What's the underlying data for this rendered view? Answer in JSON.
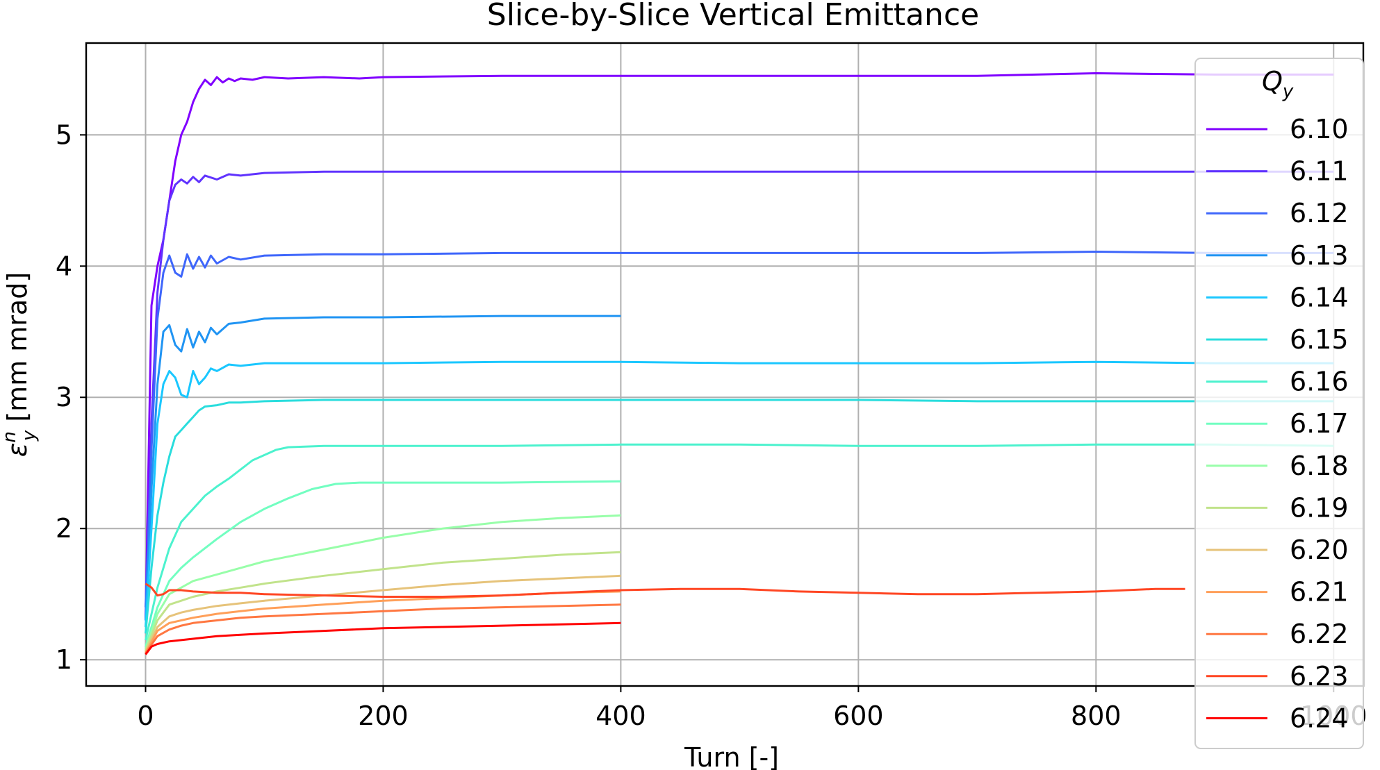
{
  "chart_data": {
    "type": "line",
    "title": "Slice-by-Slice Vertical Emittance",
    "xlabel": "Turn [-]",
    "ylabel_main": "ε",
    "ylabel_sup": "n",
    "ylabel_sub": "y",
    "ylabel_unit": "[mm mrad]",
    "xlim": [
      -50,
      1025
    ],
    "ylim": [
      0.8,
      5.7
    ],
    "xticks": [
      0,
      200,
      400,
      600,
      800,
      1000
    ],
    "xtick_labels": [
      "0",
      "200",
      "400",
      "600",
      "800",
      "1000"
    ],
    "yticks": [
      1,
      2,
      3,
      4,
      5
    ],
    "ytick_labels": [
      "1",
      "2",
      "3",
      "4",
      "5"
    ],
    "grid": true,
    "legend": {
      "placement": "right",
      "title_main": "Q",
      "title_sub": "y"
    },
    "series": [
      {
        "name": "6.10",
        "color": "#8000ff",
        "x": [
          0,
          5,
          10,
          15,
          20,
          25,
          30,
          35,
          40,
          45,
          50,
          55,
          60,
          65,
          70,
          75,
          80,
          90,
          100,
          120,
          150,
          180,
          200,
          300,
          400,
          500,
          600,
          700,
          800,
          900,
          1000
        ],
        "y": [
          1.3,
          3.7,
          4.0,
          4.2,
          4.5,
          4.8,
          5.0,
          5.1,
          5.25,
          5.35,
          5.42,
          5.38,
          5.44,
          5.4,
          5.43,
          5.41,
          5.43,
          5.42,
          5.44,
          5.43,
          5.44,
          5.43,
          5.44,
          5.45,
          5.45,
          5.45,
          5.45,
          5.45,
          5.47,
          5.46,
          5.46
        ]
      },
      {
        "name": "6.11",
        "color": "#6033fe",
        "x": [
          0,
          5,
          10,
          15,
          20,
          25,
          30,
          35,
          40,
          45,
          50,
          60,
          70,
          80,
          100,
          150,
          200,
          300,
          400,
          500,
          600,
          700,
          800,
          900,
          1000
        ],
        "y": [
          1.3,
          2.8,
          3.8,
          4.2,
          4.5,
          4.62,
          4.66,
          4.63,
          4.68,
          4.64,
          4.69,
          4.66,
          4.7,
          4.69,
          4.71,
          4.72,
          4.72,
          4.72,
          4.72,
          4.72,
          4.72,
          4.72,
          4.72,
          4.72,
          4.72
        ]
      },
      {
        "name": "6.12",
        "color": "#3e66fb",
        "x": [
          0,
          5,
          10,
          15,
          20,
          25,
          30,
          35,
          40,
          45,
          50,
          55,
          60,
          70,
          80,
          100,
          150,
          200,
          300,
          400,
          500,
          600,
          700,
          800,
          900,
          1000
        ],
        "y": [
          1.4,
          2.6,
          3.6,
          3.95,
          4.08,
          3.95,
          3.92,
          4.09,
          3.98,
          4.07,
          3.99,
          4.08,
          4.02,
          4.07,
          4.05,
          4.08,
          4.09,
          4.09,
          4.1,
          4.1,
          4.1,
          4.1,
          4.1,
          4.11,
          4.1,
          4.1
        ]
      },
      {
        "name": "6.13",
        "color": "#2094f3",
        "x": [
          0,
          5,
          10,
          15,
          20,
          25,
          30,
          35,
          40,
          45,
          50,
          55,
          60,
          70,
          80,
          100,
          150,
          200,
          300,
          400
        ],
        "y": [
          1.3,
          2.3,
          3.1,
          3.5,
          3.55,
          3.4,
          3.35,
          3.52,
          3.38,
          3.5,
          3.42,
          3.53,
          3.48,
          3.56,
          3.57,
          3.6,
          3.61,
          3.61,
          3.62,
          3.62
        ]
      },
      {
        "name": "6.14",
        "color": "#1ac7ff",
        "x": [
          0,
          5,
          10,
          15,
          20,
          25,
          30,
          35,
          40,
          45,
          50,
          55,
          60,
          70,
          80,
          100,
          150,
          200,
          300,
          400,
          500,
          600,
          700,
          800,
          900,
          1000
        ],
        "y": [
          1.25,
          2.0,
          2.8,
          3.1,
          3.2,
          3.15,
          3.02,
          3.0,
          3.2,
          3.1,
          3.15,
          3.22,
          3.2,
          3.25,
          3.24,
          3.26,
          3.26,
          3.26,
          3.27,
          3.27,
          3.26,
          3.26,
          3.26,
          3.27,
          3.26,
          3.26
        ]
      },
      {
        "name": "6.15",
        "color": "#2adddd",
        "x": [
          0,
          5,
          10,
          15,
          20,
          25,
          30,
          35,
          40,
          45,
          50,
          60,
          70,
          80,
          100,
          150,
          200,
          300,
          400,
          500,
          600,
          700,
          800,
          900,
          1000
        ],
        "y": [
          1.2,
          1.7,
          2.1,
          2.35,
          2.55,
          2.7,
          2.75,
          2.8,
          2.85,
          2.9,
          2.93,
          2.94,
          2.96,
          2.96,
          2.97,
          2.98,
          2.98,
          2.98,
          2.98,
          2.98,
          2.98,
          2.97,
          2.97,
          2.97,
          2.97
        ]
      },
      {
        "name": "6.16",
        "color": "#4cf2ce",
        "x": [
          0,
          10,
          20,
          30,
          40,
          50,
          60,
          70,
          80,
          90,
          100,
          110,
          120,
          150,
          200,
          300,
          400,
          500,
          600,
          700,
          800,
          900,
          1000
        ],
        "y": [
          1.15,
          1.55,
          1.85,
          2.05,
          2.15,
          2.25,
          2.32,
          2.38,
          2.45,
          2.52,
          2.56,
          2.6,
          2.62,
          2.63,
          2.63,
          2.63,
          2.64,
          2.64,
          2.63,
          2.63,
          2.64,
          2.64,
          2.63
        ]
      },
      {
        "name": "6.17",
        "color": "#72fec1",
        "x": [
          0,
          10,
          20,
          30,
          40,
          60,
          80,
          100,
          120,
          140,
          160,
          180,
          200,
          300,
          400
        ],
        "y": [
          1.1,
          1.4,
          1.6,
          1.7,
          1.78,
          1.92,
          2.05,
          2.15,
          2.23,
          2.3,
          2.34,
          2.35,
          2.35,
          2.35,
          2.36
        ]
      },
      {
        "name": "6.18",
        "color": "#98fea9",
        "x": [
          0,
          10,
          20,
          30,
          40,
          60,
          80,
          100,
          150,
          200,
          250,
          300,
          350,
          400
        ],
        "y": [
          1.08,
          1.35,
          1.5,
          1.55,
          1.6,
          1.65,
          1.7,
          1.75,
          1.84,
          1.93,
          2.0,
          2.05,
          2.08,
          2.1
        ]
      },
      {
        "name": "6.19",
        "color": "#c1e38b",
        "x": [
          0,
          10,
          20,
          30,
          40,
          60,
          80,
          100,
          150,
          200,
          250,
          300,
          350,
          400
        ],
        "y": [
          1.07,
          1.3,
          1.42,
          1.45,
          1.48,
          1.52,
          1.55,
          1.58,
          1.64,
          1.69,
          1.74,
          1.77,
          1.8,
          1.82
        ]
      },
      {
        "name": "6.20",
        "color": "#e6c37a",
        "x": [
          0,
          10,
          20,
          30,
          40,
          60,
          80,
          100,
          150,
          200,
          250,
          300,
          350,
          400
        ],
        "y": [
          1.06,
          1.25,
          1.33,
          1.36,
          1.38,
          1.41,
          1.43,
          1.45,
          1.49,
          1.53,
          1.57,
          1.6,
          1.62,
          1.64
        ]
      },
      {
        "name": "6.21",
        "color": "#ff9f59",
        "x": [
          0,
          10,
          20,
          30,
          40,
          60,
          80,
          100,
          150,
          200,
          250,
          300,
          350,
          400
        ],
        "y": [
          1.05,
          1.22,
          1.28,
          1.3,
          1.32,
          1.35,
          1.37,
          1.39,
          1.42,
          1.45,
          1.47,
          1.49,
          1.51,
          1.52
        ]
      },
      {
        "name": "6.22",
        "color": "#ff7741",
        "x": [
          0,
          10,
          20,
          30,
          40,
          60,
          80,
          100,
          150,
          200,
          250,
          300,
          350,
          400
        ],
        "y": [
          1.05,
          1.18,
          1.23,
          1.26,
          1.28,
          1.3,
          1.32,
          1.33,
          1.35,
          1.37,
          1.39,
          1.4,
          1.41,
          1.42
        ]
      },
      {
        "name": "6.23",
        "color": "#ff4623",
        "x": [
          0,
          5,
          10,
          15,
          20,
          30,
          40,
          60,
          80,
          100,
          150,
          200,
          250,
          300,
          350,
          400,
          450,
          500,
          550,
          600,
          650,
          700,
          750,
          800,
          850,
          875
        ],
        "y": [
          1.58,
          1.55,
          1.49,
          1.5,
          1.53,
          1.53,
          1.52,
          1.51,
          1.51,
          1.5,
          1.49,
          1.48,
          1.48,
          1.49,
          1.51,
          1.53,
          1.54,
          1.54,
          1.52,
          1.51,
          1.5,
          1.5,
          1.51,
          1.52,
          1.54,
          1.54
        ]
      },
      {
        "name": "6.24",
        "color": "#ff0000",
        "x": [
          0,
          5,
          10,
          20,
          30,
          40,
          60,
          80,
          100,
          150,
          200,
          250,
          300,
          350,
          400
        ],
        "y": [
          1.04,
          1.1,
          1.12,
          1.14,
          1.15,
          1.16,
          1.18,
          1.19,
          1.2,
          1.22,
          1.24,
          1.25,
          1.26,
          1.27,
          1.28
        ]
      }
    ]
  }
}
